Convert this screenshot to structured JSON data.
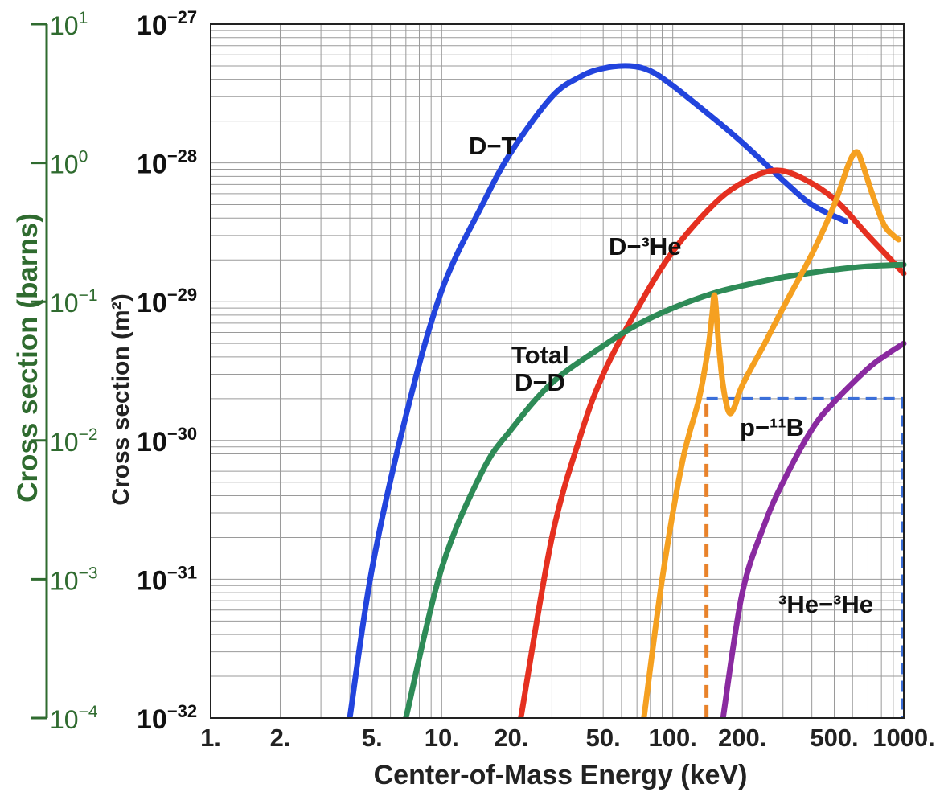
{
  "chart_data": {
    "type": "line",
    "x_scale": "log",
    "y_scale": "log",
    "xlim": [
      1,
      1000
    ],
    "ylim": [
      1e-32,
      1e-27
    ],
    "y2lim": [
      0.0001,
      10
    ],
    "grid": true,
    "xlabel": "Center-of-Mass Energy (keV)",
    "ylabel": "Cross section (m²)",
    "y2label": "Cross section (barns)",
    "x_tick_labels": [
      "1.",
      "2.",
      "5.",
      "10.",
      "20.",
      "50.",
      "100.",
      "200.",
      "500.",
      "1000."
    ],
    "x_ticks": [
      1,
      2,
      5,
      10,
      20,
      50,
      100,
      200,
      500,
      1000
    ],
    "y_ticks": [
      {
        "value": 1e-27,
        "base": "10",
        "exp": "−27"
      },
      {
        "value": 1e-28,
        "base": "10",
        "exp": "−28"
      },
      {
        "value": 1e-29,
        "base": "10",
        "exp": "−29"
      },
      {
        "value": 1e-30,
        "base": "10",
        "exp": "−30"
      },
      {
        "value": 1e-31,
        "base": "10",
        "exp": "−31"
      },
      {
        "value": 1e-32,
        "base": "10",
        "exp": "−32"
      }
    ],
    "y2_ticks": [
      {
        "value": 10,
        "base": "10",
        "exp": "1"
      },
      {
        "value": 1,
        "base": "10",
        "exp": "0"
      },
      {
        "value": 0.1,
        "base": "10",
        "exp": "−1"
      },
      {
        "value": 0.01,
        "base": "10",
        "exp": "−2"
      },
      {
        "value": 0.001,
        "base": "10",
        "exp": "−3"
      },
      {
        "value": 0.0001,
        "base": "10",
        "exp": "−4"
      }
    ],
    "series": [
      {
        "name": "D−T",
        "color": "#2244dd",
        "points": [
          [
            4,
            1e-32
          ],
          [
            5,
            1.2e-31
          ],
          [
            7,
            1.5e-30
          ],
          [
            10,
            1.2e-29
          ],
          [
            15,
            5e-29
          ],
          [
            20,
            1.2e-28
          ],
          [
            30,
            3e-28
          ],
          [
            40,
            4.2e-28
          ],
          [
            50,
            4.8e-28
          ],
          [
            65,
            5e-28
          ],
          [
            80,
            4.6e-28
          ],
          [
            100,
            3.6e-28
          ],
          [
            150,
            2.1e-28
          ],
          [
            200,
            1.4e-28
          ],
          [
            300,
            7.5e-29
          ],
          [
            400,
            5e-29
          ],
          [
            560,
            3.8e-29
          ]
        ]
      },
      {
        "name": "D−³He",
        "color": "#e53020",
        "points": [
          [
            22,
            1e-32
          ],
          [
            30,
            2e-31
          ],
          [
            40,
            1.1e-30
          ],
          [
            50,
            3e-30
          ],
          [
            70,
            8.8e-30
          ],
          [
            100,
            2.3e-29
          ],
          [
            150,
            5e-29
          ],
          [
            200,
            7.2e-29
          ],
          [
            270,
            8.8e-29
          ],
          [
            350,
            8e-29
          ],
          [
            500,
            5.5e-29
          ],
          [
            700,
            3e-29
          ],
          [
            1000,
            1.6e-29
          ]
        ]
      },
      {
        "name": "Total\nD−D",
        "color": "#2e8b57",
        "points": [
          [
            7,
            1e-32
          ],
          [
            10,
            1.2e-31
          ],
          [
            15,
            6e-31
          ],
          [
            20,
            1.2e-30
          ],
          [
            30,
            2.6e-30
          ],
          [
            50,
            4.8e-30
          ],
          [
            70,
            6.8e-30
          ],
          [
            100,
            9e-30
          ],
          [
            150,
            1.15e-29
          ],
          [
            200,
            1.3e-29
          ],
          [
            300,
            1.5e-29
          ],
          [
            500,
            1.7e-29
          ],
          [
            700,
            1.8e-29
          ],
          [
            1000,
            1.85e-29
          ]
        ]
      },
      {
        "name": "p−¹¹B",
        "color": "#f5a020",
        "points": [
          [
            75,
            1e-32
          ],
          [
            90,
            1e-31
          ],
          [
            110,
            7e-31
          ],
          [
            130,
            2e-30
          ],
          [
            142,
            4.5e-30
          ],
          [
            148,
            8e-30
          ],
          [
            152,
            1.1e-29
          ],
          [
            158,
            5e-30
          ],
          [
            165,
            2.5e-30
          ],
          [
            175,
            1.6e-30
          ],
          [
            185,
            1.75e-30
          ],
          [
            200,
            2.5e-30
          ],
          [
            250,
            5e-30
          ],
          [
            300,
            9e-30
          ],
          [
            400,
            2.2e-29
          ],
          [
            500,
            5e-29
          ],
          [
            580,
            1e-28
          ],
          [
            625,
            1.2e-28
          ],
          [
            660,
            1e-28
          ],
          [
            730,
            6e-29
          ],
          [
            820,
            3.6e-29
          ],
          [
            900,
            3e-29
          ],
          [
            950,
            2.8e-29
          ]
        ]
      },
      {
        "name": "³He−³He",
        "color": "#8a2aa0",
        "points": [
          [
            165,
            1e-32
          ],
          [
            200,
            8e-32
          ],
          [
            250,
            2.5e-31
          ],
          [
            300,
            5e-31
          ],
          [
            400,
            1.2e-30
          ],
          [
            500,
            1.9e-30
          ],
          [
            700,
            3.3e-30
          ],
          [
            850,
            4.2e-30
          ],
          [
            1000,
            5e-30
          ]
        ]
      }
    ],
    "annotations": [
      {
        "text": "D−T",
        "name": "dt-label"
      },
      {
        "text": "D−³He",
        "name": "dhe3-label"
      },
      {
        "text": "Total",
        "name": "dd-label-line1"
      },
      {
        "text": "D−D",
        "name": "dd-label-line2"
      },
      {
        "text": "p−¹¹B",
        "name": "pb11-label"
      },
      {
        "text": "³He−³He",
        "name": "he3he3-label"
      }
    ],
    "highlight_boxes": [
      {
        "name": "p-b11-region-box",
        "color": "#3b6fd9",
        "x": [
          140,
          1000
        ],
        "y": [
          1e-32,
          2e-30
        ]
      },
      {
        "name": "p-b11-threshold-line",
        "color": "#e8822a",
        "x": [
          140,
          140
        ],
        "y": [
          1e-32,
          2e-30
        ]
      }
    ]
  }
}
